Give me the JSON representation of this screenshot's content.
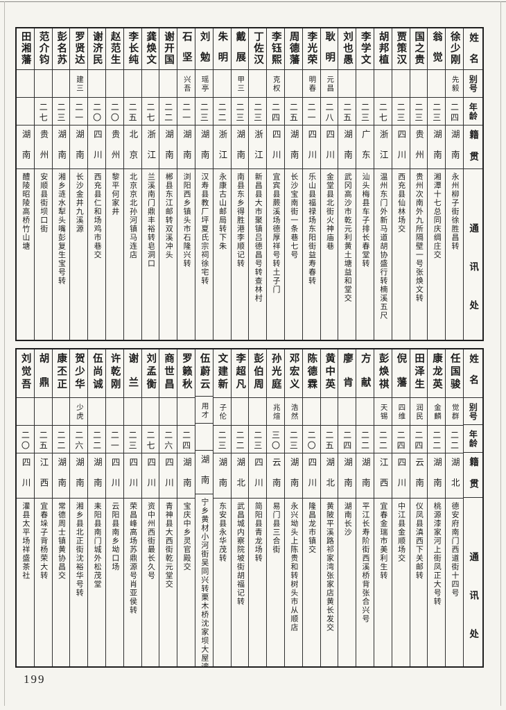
{
  "colors": {
    "paper": "#f5f4ef",
    "ink": "#1c1c1c",
    "table_border": "#2e2e2e"
  },
  "page": {
    "number": "199"
  },
  "headers": {
    "name": "姓名",
    "alias": "别号",
    "age": "年龄",
    "native": "籍贯",
    "address": "通讯处"
  },
  "sections": [
    {
      "entries": [
        {
          "name": "徐少刚",
          "alias": "先毅",
          "age": "二四",
          "native": "湖南",
          "address": "永州柳子街徐胜昌转"
        },
        {
          "name": "翁觉",
          "alias": "",
          "age": "二三",
          "native": "湖南",
          "address": "湘潭十七总同庆绸庄交"
        },
        {
          "name": "国之贵",
          "alias": "",
          "age": "二三",
          "native": "贵州",
          "address": "贵州次南外九所隔壁一号张焕文转"
        },
        {
          "name": "贾策汉",
          "alias": "",
          "age": "二三",
          "native": "四川",
          "address": "西充县仙林场交"
        },
        {
          "name": "胡邦植",
          "alias": "",
          "age": "二七",
          "native": "浙江",
          "address": "温州东门外新马道胡协盛行转楠溪五尺"
        },
        {
          "name": "李学文",
          "alias": "",
          "age": "二三",
          "native": "广东",
          "address": "汕头梅县车子排长春堂转"
        },
        {
          "name": "刘也愚",
          "alias": "",
          "age": "二五",
          "native": "湖南",
          "address": "武冈高沙市乾元利黄土塘益和堂交"
        },
        {
          "name": "耿明",
          "alias": "元昌",
          "age": "二八",
          "native": "四川",
          "address": "金堂县北街火神庙巷"
        },
        {
          "name": "李光荣",
          "alias": "明春",
          "age": "二一",
          "native": "四川",
          "address": "乐山县福禄场东阳街益寿春转"
        },
        {
          "name": "周德藩",
          "alias": "",
          "age": "二五",
          "native": "湖南",
          "address": "长沙宝南街一条巷七号"
        },
        {
          "name": "李钰熙",
          "alias": "克权",
          "age": "二四",
          "native": "四川",
          "address": "宜宾县蕨溪场德厚祥号转土子门"
        },
        {
          "name": "丁佐汉",
          "alias": "",
          "age": "二三",
          "native": "浙江",
          "address": "新昌县大市聚镇吕德昌号转查林村"
        },
        {
          "name": "戴展",
          "alias": "甲三",
          "age": "二三",
          "native": "湖南",
          "address": "南县东乡得胜港李顺记转"
        },
        {
          "name": "朱明",
          "alias": "",
          "age": "二二",
          "native": "浙江",
          "address": "永康古山邮局转下朱"
        },
        {
          "name": "刘勉",
          "alias": "瑶亭",
          "age": "二三",
          "native": "湖南",
          "address": "汉寿县教厂坪夏氏宗祠徐宅转"
        },
        {
          "name": "石坚",
          "alias": "兴吾",
          "age": "二一",
          "native": "湖南",
          "address": "浏阳西乡镇头市石隆兴转"
        },
        {
          "name": "谢开国",
          "alias": "",
          "age": "二二",
          "native": "湖南",
          "address": "郴县东江邮转双溪冲头"
        },
        {
          "name": "龚焕文",
          "alias": "",
          "age": "二七",
          "native": "浙江",
          "address": "兰溪南门鼎丰裕转皂洞口"
        },
        {
          "name": "李长纯",
          "alias": "",
          "age": "二五",
          "native": "北京",
          "address": "北京京北孙河镇马连店"
        },
        {
          "name": "赵范生",
          "alias": "",
          "age": "二〇",
          "native": "贵州",
          "address": "黎平何家井"
        },
        {
          "name": "谢济民",
          "alias": "",
          "age": "二〇",
          "native": "四川",
          "address": "西充县仁和场鸡市巷交"
        },
        {
          "name": "罗贤达",
          "alias": "建三",
          "age": "二一",
          "native": "湖南",
          "address": "长沙金井九溪源"
        },
        {
          "name": "彭名苏",
          "alias": "",
          "age": "二三",
          "native": "湖南",
          "address": "湘乡涟水犁头嘴彭复生宝号转"
        },
        {
          "name": "范介钧",
          "alias": "",
          "age": "二七",
          "native": "贵州",
          "address": "安顺县街坝口街"
        },
        {
          "name": "田湘藩",
          "alias": "",
          "age": "",
          "native": "湖南",
          "address": "醴陵昭陵高桥竹山塘"
        }
      ]
    },
    {
      "entries": [
        {
          "name": "任国骏",
          "alias": "觉群",
          "age": "二二",
          "native": "湖北",
          "address": "德安府南门西道街十四号"
        },
        {
          "name": "康龙英",
          "alias": "金麟",
          "age": "二二",
          "native": "湖南",
          "address": "桃源漆家河上街凤正大号转"
        },
        {
          "name": "田泽生",
          "alias": "润民",
          "age": "二四",
          "native": "云南",
          "address": "仪凤县滇西下关邮转"
        },
        {
          "name": "倪藩",
          "alias": "四维",
          "age": "二四",
          "native": "四川",
          "address": "中江县金顺场交"
        },
        {
          "name": "彭焕祺",
          "alias": "天锡",
          "age": "二二",
          "native": "江西",
          "address": "宜春金瑞市美利生转"
        },
        {
          "name": "方献",
          "alias": "",
          "age": "二二",
          "native": "湖南",
          "address": "平江长寿阶街西溪桥背张合兴号"
        },
        {
          "name": "廖肯",
          "alias": "",
          "age": "二四",
          "native": "湖南",
          "address": "湖南长沙"
        },
        {
          "name": "黄中英",
          "alias": "",
          "age": "二五",
          "native": "湖北",
          "address": "黄陂平溪路祁家湾张家店黄长发交"
        },
        {
          "name": "陈德霖",
          "alias": "",
          "age": "二〇",
          "native": "四川",
          "address": "隆昌龙市镇交"
        },
        {
          "name": "邓宏义",
          "alias": "浩然",
          "age": "二三",
          "native": "湖南",
          "address": "永兴坳头上陈贵和转树头市从顺店"
        },
        {
          "name": "孙光庭",
          "alias": "兆煊",
          "age": "三〇",
          "native": "云南",
          "address": "易门县三合街"
        },
        {
          "name": "彭伯周",
          "alias": "",
          "age": "二三",
          "native": "四川",
          "address": "简阳县青龙场转"
        },
        {
          "name": "李超凡",
          "alias": "",
          "age": "二二",
          "native": "湖北",
          "address": "武昌城内察院坡街胡福记转"
        },
        {
          "name": "文建新",
          "alias": "子伦",
          "age": "二三",
          "native": "湖南",
          "address": "东安县永华茂转"
        },
        {
          "name": "伍蔚云",
          "alias": "用才",
          "age": "",
          "native": "湖南",
          "address": "宁乡黄材小河街吴同兴转栗木桥沈家坝大屋湾"
        },
        {
          "name": "罗籁秋",
          "alias": "",
          "age": "二四",
          "native": "湖南",
          "address": "宝庆中乡灵官殿交"
        },
        {
          "name": "商世昌",
          "alias": "",
          "age": "二六",
          "native": "四川",
          "address": "青神县大西街乾元堂交"
        },
        {
          "name": "刘孟衡",
          "alias": "",
          "age": "二七",
          "native": "四川",
          "address": "资中州西街最长久号"
        },
        {
          "name": "谢兰",
          "alias": "",
          "age": "二三",
          "native": "四川",
          "address": "荣昌峰高场苏鼎源号肖亚侯转"
        },
        {
          "name": "许乾刚",
          "alias": "",
          "age": "二一",
          "native": "四川",
          "address": "云阳县南乡坳口场"
        },
        {
          "name": "伍尚诚",
          "alias": "",
          "age": "二二",
          "native": "湖南",
          "address": "耒阳县南门城外松茂堂"
        },
        {
          "name": "贺少华",
          "alias": "少虎",
          "age": "二六",
          "native": "湖南",
          "address": "湘乡县北正街沈裕华号转"
        },
        {
          "name": "康丕正",
          "alias": "",
          "age": "二二",
          "native": "湖南",
          "address": "常德周士镇黄协昌交"
        },
        {
          "name": "胡鼎",
          "alias": "",
          "age": "二五",
          "native": "江西",
          "address": "宜春垛子背杨荣大转"
        },
        {
          "name": "刘觉吾",
          "alias": "",
          "age": "二〇",
          "native": "四川",
          "address": "灌县太平场祥盛茶社"
        }
      ]
    }
  ]
}
